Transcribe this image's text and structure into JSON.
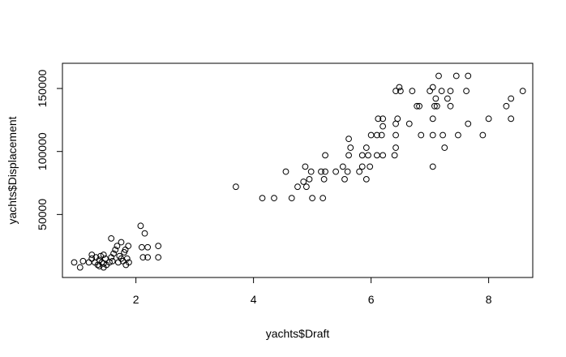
{
  "chart_data": {
    "type": "scatter",
    "title": "",
    "xlabel": "yachts$Draft",
    "ylabel": "yachts$Displacement",
    "xlim": [
      0.75,
      8.75
    ],
    "ylim": [
      0,
      170000
    ],
    "x_ticks": [
      2,
      4,
      6,
      8
    ],
    "x_tick_labels": [
      "2",
      "4",
      "6",
      "8"
    ],
    "y_ticks": [
      50000,
      100000,
      150000
    ],
    "y_tick_labels": [
      "50000",
      "100000",
      "150000"
    ],
    "grid": false,
    "legend": "none",
    "marker": "open-circle",
    "colors": {
      "marker": "#000000",
      "axis": "#000000",
      "background": "#ffffff"
    },
    "points": [
      [
        0.95,
        12000
      ],
      [
        1.05,
        8000
      ],
      [
        1.1,
        13000
      ],
      [
        1.2,
        12000
      ],
      [
        1.25,
        15000
      ],
      [
        1.25,
        18000
      ],
      [
        1.3,
        12000
      ],
      [
        1.32,
        16000
      ],
      [
        1.35,
        10000
      ],
      [
        1.38,
        14000
      ],
      [
        1.4,
        17000
      ],
      [
        1.42,
        12000
      ],
      [
        1.45,
        8000
      ],
      [
        1.45,
        18000
      ],
      [
        1.48,
        15000
      ],
      [
        1.5,
        10000
      ],
      [
        1.55,
        12000
      ],
      [
        1.58,
        16000
      ],
      [
        1.6,
        13000
      ],
      [
        1.62,
        19000
      ],
      [
        1.65,
        22000
      ],
      [
        1.68,
        25000
      ],
      [
        1.7,
        12000
      ],
      [
        1.72,
        17000
      ],
      [
        1.75,
        15000
      ],
      [
        1.78,
        13000
      ],
      [
        1.8,
        20000
      ],
      [
        1.82,
        22000
      ],
      [
        1.83,
        10000
      ],
      [
        1.85,
        15000
      ],
      [
        1.87,
        25000
      ],
      [
        1.88,
        12000
      ],
      [
        1.58,
        31000
      ],
      [
        1.75,
        28000
      ],
      [
        1.45,
        11000
      ],
      [
        1.38,
        9000
      ],
      [
        2.08,
        41000
      ],
      [
        2.15,
        35000
      ],
      [
        2.1,
        24000
      ],
      [
        2.2,
        24000
      ],
      [
        2.12,
        16000
      ],
      [
        2.2,
        16000
      ],
      [
        2.38,
        25000
      ],
      [
        2.38,
        16000
      ],
      [
        3.7,
        72000
      ],
      [
        4.15,
        63000
      ],
      [
        4.35,
        63000
      ],
      [
        4.55,
        84000
      ],
      [
        4.65,
        63000
      ],
      [
        4.75,
        72000
      ],
      [
        4.85,
        76000
      ],
      [
        4.88,
        88000
      ],
      [
        4.9,
        72000
      ],
      [
        4.95,
        78000
      ],
      [
        4.98,
        84000
      ],
      [
        5.0,
        63000
      ],
      [
        5.15,
        84000
      ],
      [
        5.18,
        63000
      ],
      [
        5.2,
        78000
      ],
      [
        5.22,
        84000
      ],
      [
        5.22,
        97000
      ],
      [
        5.4,
        84000
      ],
      [
        5.52,
        88000
      ],
      [
        5.55,
        78000
      ],
      [
        5.6,
        84000
      ],
      [
        5.62,
        97000
      ],
      [
        5.65,
        103000
      ],
      [
        5.62,
        110000
      ],
      [
        5.8,
        84000
      ],
      [
        5.85,
        88000
      ],
      [
        5.85,
        97000
      ],
      [
        5.92,
        78000
      ],
      [
        5.92,
        103000
      ],
      [
        5.95,
        97000
      ],
      [
        5.98,
        88000
      ],
      [
        6.0,
        113000
      ],
      [
        6.1,
        113000
      ],
      [
        6.1,
        97000
      ],
      [
        6.12,
        126000
      ],
      [
        6.18,
        113000
      ],
      [
        6.2,
        97000
      ],
      [
        6.2,
        120000
      ],
      [
        6.2,
        126000
      ],
      [
        6.4,
        97000
      ],
      [
        6.42,
        103000
      ],
      [
        6.42,
        113000
      ],
      [
        6.42,
        122000
      ],
      [
        6.45,
        126000
      ],
      [
        6.48,
        151000
      ],
      [
        6.42,
        148000
      ],
      [
        6.5,
        148000
      ],
      [
        6.65,
        122000
      ],
      [
        6.7,
        148000
      ],
      [
        6.78,
        136000
      ],
      [
        6.82,
        136000
      ],
      [
        6.85,
        113000
      ],
      [
        7.0,
        148000
      ],
      [
        7.05,
        88000
      ],
      [
        7.05,
        113000
      ],
      [
        7.05,
        126000
      ],
      [
        7.08,
        136000
      ],
      [
        7.1,
        142000
      ],
      [
        7.05,
        151000
      ],
      [
        7.12,
        136000
      ],
      [
        7.15,
        160000
      ],
      [
        7.2,
        148000
      ],
      [
        7.22,
        113000
      ],
      [
        7.25,
        103000
      ],
      [
        7.3,
        142000
      ],
      [
        7.35,
        136000
      ],
      [
        7.35,
        148000
      ],
      [
        7.45,
        160000
      ],
      [
        7.48,
        113000
      ],
      [
        7.62,
        148000
      ],
      [
        7.65,
        160000
      ],
      [
        7.65,
        122000
      ],
      [
        7.9,
        113000
      ],
      [
        8.0,
        126000
      ],
      [
        8.3,
        136000
      ],
      [
        8.38,
        142000
      ],
      [
        8.38,
        126000
      ],
      [
        8.58,
        148000
      ]
    ]
  }
}
